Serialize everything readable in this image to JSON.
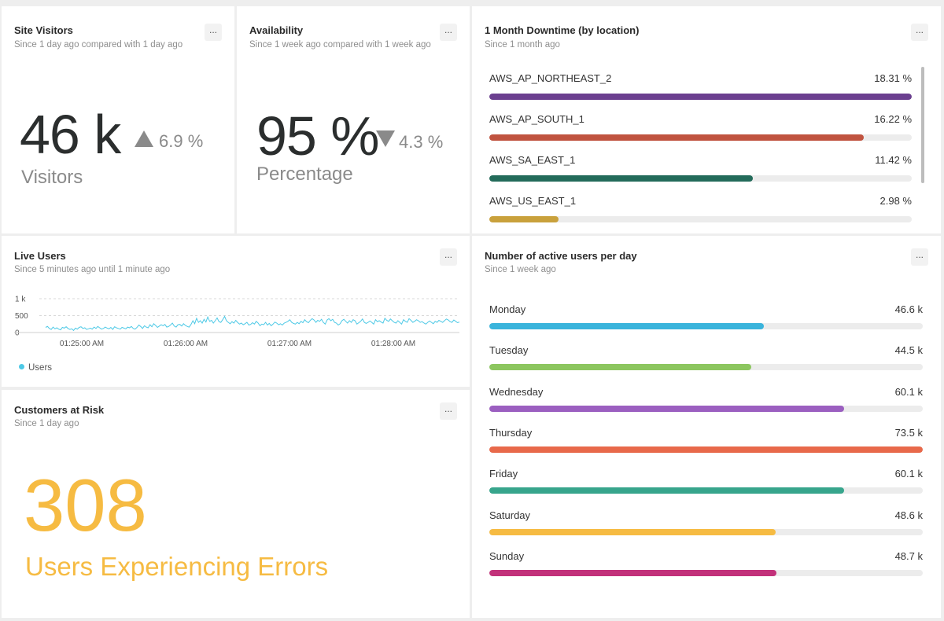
{
  "site_visitors": {
    "title": "Site Visitors",
    "subtitle": "Since 1 day ago compared with 1 day ago",
    "value": "46 k",
    "delta": "6.9 %",
    "delta_direction": "up",
    "unit": "Visitors",
    "menu_label": "..."
  },
  "availability": {
    "title": "Availability",
    "subtitle": "Since 1 week ago compared with 1 week ago",
    "value": "95 %",
    "delta": "4.3 %",
    "delta_direction": "down",
    "unit": "Percentage",
    "menu_label": "..."
  },
  "downtime": {
    "title": "1 Month Downtime (by location)",
    "subtitle": "Since 1 month ago",
    "menu_label": "...",
    "items": [
      {
        "label": "AWS_AP_NORTHEAST_2",
        "value": "18.31 %",
        "fraction": 1.0,
        "color": "#6b3f8f"
      },
      {
        "label": "AWS_AP_SOUTH_1",
        "value": "16.22 %",
        "fraction": 0.886,
        "color": "#c0533f"
      },
      {
        "label": "AWS_SA_EAST_1",
        "value": "11.42 %",
        "fraction": 0.624,
        "color": "#236b5a"
      },
      {
        "label": "AWS_US_EAST_1",
        "value": "2.98 %",
        "fraction": 0.163,
        "color": "#c9a13c"
      }
    ]
  },
  "live_users": {
    "title": "Live Users",
    "subtitle": "Since 5 minutes ago until 1 minute ago",
    "menu_label": "...",
    "legend": "Users",
    "line_color": "#4dc9e6"
  },
  "chart_data": {
    "type": "line",
    "yticks": [
      "1 k",
      "500",
      "0"
    ],
    "ylim": [
      0,
      1000
    ],
    "xticks": [
      "01:25:00 AM",
      "01:26:00 AM",
      "01:27:00 AM",
      "01:28:00 AM"
    ],
    "series": [
      {
        "name": "Users",
        "values": [
          150,
          180,
          120,
          90,
          160,
          110,
          140,
          100,
          80,
          150,
          130,
          170,
          120,
          90,
          110,
          60,
          130,
          100,
          150,
          170,
          120,
          140,
          90,
          110,
          130,
          100,
          160,
          120,
          180,
          140,
          100,
          120,
          160,
          130,
          110,
          150,
          90,
          170,
          140,
          120,
          100,
          150,
          130,
          110,
          160,
          140,
          180,
          120,
          100,
          150,
          220,
          180,
          120,
          200,
          160,
          140,
          230,
          170,
          260,
          210,
          150,
          190,
          230,
          200,
          240,
          160,
          180,
          220,
          280,
          190,
          160,
          230,
          240,
          190,
          260,
          210,
          180,
          160,
          240,
          350,
          260,
          420,
          300,
          350,
          280,
          390,
          310,
          460,
          330,
          360,
          280,
          350,
          430,
          320,
          300,
          380,
          480,
          350,
          300,
          260,
          320,
          280,
          360,
          300,
          250,
          280,
          230,
          260,
          300,
          220,
          240,
          290,
          250,
          330,
          280,
          200,
          250,
          230,
          300,
          220,
          270,
          200,
          250,
          310,
          280,
          230,
          260,
          220,
          280,
          300,
          330,
          380,
          300,
          270,
          250,
          300,
          260,
          330,
          290,
          380,
          320,
          290,
          360,
          410,
          370,
          300,
          360,
          330,
          390,
          300,
          250,
          370,
          410,
          350,
          390,
          300,
          280,
          220,
          260,
          350,
          390,
          330,
          280,
          350,
          300,
          380,
          350,
          250,
          290,
          330,
          400,
          300,
          270,
          300,
          340,
          300,
          250,
          380,
          320,
          350,
          310,
          280,
          420,
          360,
          330,
          400,
          350,
          300,
          280,
          350,
          300,
          250,
          380,
          330,
          300,
          410,
          360,
          300,
          330,
          380,
          350,
          300,
          320,
          280,
          250,
          300,
          340,
          300,
          260,
          330,
          300,
          360,
          330,
          300,
          350,
          400,
          370,
          320,
          300,
          370,
          330,
          290,
          310
        ]
      }
    ]
  },
  "customers_at_risk": {
    "title": "Customers at Risk",
    "subtitle": "Since 1 day ago",
    "menu_label": "...",
    "value": "308",
    "label": "Users Experiencing Errors",
    "color": "#f6bb42"
  },
  "active_users": {
    "title": "Number of active users per day",
    "subtitle": "Since 1 week ago",
    "menu_label": "...",
    "items": [
      {
        "label": "Monday",
        "value": "46.6 k",
        "fraction": 0.634,
        "color": "#3ab4dc"
      },
      {
        "label": "Tuesday",
        "value": "44.5 k",
        "fraction": 0.605,
        "color": "#8cc65f"
      },
      {
        "label": "Wednesday",
        "value": "60.1 k",
        "fraction": 0.818,
        "color": "#9b5fc0"
      },
      {
        "label": "Thursday",
        "value": "73.5 k",
        "fraction": 1.0,
        "color": "#e8694a"
      },
      {
        "label": "Friday",
        "value": "60.1 k",
        "fraction": 0.818,
        "color": "#37a58c"
      },
      {
        "label": "Saturday",
        "value": "48.6 k",
        "fraction": 0.661,
        "color": "#f6bb42"
      },
      {
        "label": "Sunday",
        "value": "48.7 k",
        "fraction": 0.663,
        "color": "#c2317a"
      }
    ]
  }
}
